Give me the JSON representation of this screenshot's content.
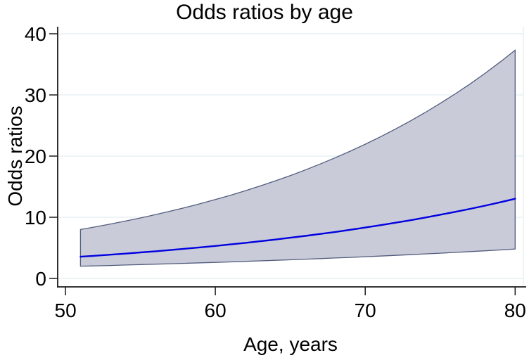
{
  "title": "Odds ratios by age",
  "x_axis": {
    "label": "Age, years"
  },
  "y_axis": {
    "label": "Odds ratios"
  },
  "colors": {
    "background": "#ffffff",
    "grid": "#e7f1f2",
    "axis": "#1a1a1a",
    "text": "#000000",
    "band_fill": "#c9cbd8",
    "band_edge": "#525c7d",
    "line": "#0000e0"
  },
  "chart_data": {
    "type": "line",
    "title": "Odds ratios by age",
    "xlabel": "Age, years",
    "ylabel": "Odds ratios",
    "xlim": [
      49.48,
      80.55
    ],
    "ylim": [
      -1.38,
      41.15
    ],
    "x_ticks": [
      50,
      60,
      70,
      80
    ],
    "y_ticks": [
      0,
      10,
      20,
      30,
      40
    ],
    "grid": "horizontal",
    "legend": "none",
    "x": [
      51,
      52,
      53,
      54,
      55,
      56,
      57,
      58,
      59,
      60,
      61,
      62,
      63,
      64,
      65,
      66,
      67,
      68,
      69,
      70,
      71,
      72,
      73,
      74,
      75,
      76,
      77,
      78,
      79,
      80
    ],
    "series": [
      {
        "name": "Odds ratio",
        "values": [
          3.55,
          3.71,
          3.88,
          4.06,
          4.25,
          4.44,
          4.64,
          4.86,
          5.08,
          5.31,
          5.56,
          5.81,
          6.08,
          6.36,
          6.65,
          6.95,
          7.27,
          7.6,
          7.95,
          8.32,
          8.7,
          9.1,
          9.51,
          9.95,
          10.41,
          10.88,
          11.38,
          11.9,
          12.45,
          13.02
        ]
      },
      {
        "name": "95% CI upper",
        "values": [
          8.0,
          8.44,
          8.9,
          9.38,
          9.89,
          10.43,
          11.0,
          11.6,
          12.23,
          12.9,
          13.6,
          14.35,
          15.13,
          15.95,
          16.82,
          17.74,
          18.71,
          19.73,
          20.8,
          21.94,
          23.14,
          24.4,
          25.73,
          27.13,
          28.61,
          30.17,
          31.81,
          33.55,
          35.38,
          37.31
        ]
      },
      {
        "name": "95% CI lower",
        "values": [
          2.0,
          2.06,
          2.12,
          2.19,
          2.26,
          2.33,
          2.4,
          2.47,
          2.55,
          2.62,
          2.7,
          2.79,
          2.87,
          2.96,
          3.05,
          3.15,
          3.24,
          3.34,
          3.44,
          3.55,
          3.66,
          3.77,
          3.89,
          4.01,
          4.13,
          4.25,
          4.39,
          4.52,
          4.66,
          4.8
        ]
      }
    ]
  }
}
